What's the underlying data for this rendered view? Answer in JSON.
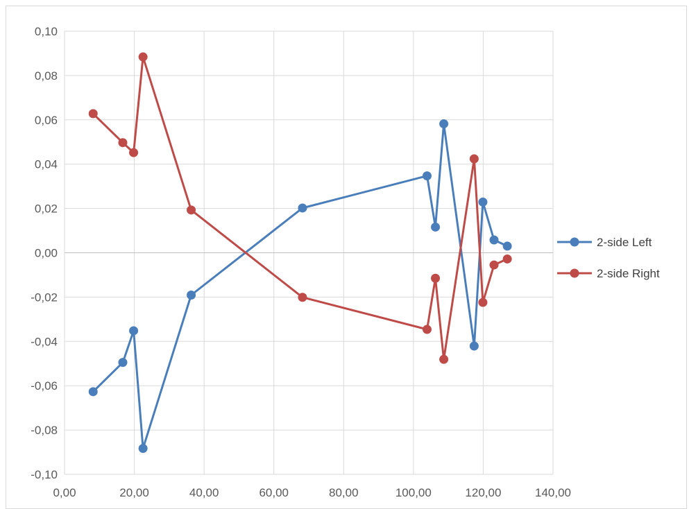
{
  "chart_data": {
    "type": "scatter",
    "title": "",
    "xlabel": "",
    "ylabel": "",
    "xlim": [
      0,
      140
    ],
    "ylim": [
      -0.1,
      0.1
    ],
    "x_ticks": [
      0,
      20,
      40,
      60,
      80,
      100,
      120,
      140
    ],
    "y_ticks": [
      0.1,
      0.08,
      0.06,
      0.04,
      0.02,
      0.0,
      -0.02,
      -0.04,
      -0.06,
      -0.08,
      -0.1
    ],
    "x_tick_labels": [
      "0,00",
      "20,00",
      "40,00",
      "60,00",
      "80,00",
      "100,00",
      "120,00",
      "140,00"
    ],
    "y_tick_labels": [
      "0,10",
      "0,08",
      "0,06",
      "0,04",
      "0,02",
      "0,00",
      "-0,02",
      "-0,04",
      "-0,06",
      "-0,08",
      "-0,10"
    ],
    "grid": true,
    "legend_position": "right",
    "series": [
      {
        "name": "2-side Left",
        "color": "#4a7ebb",
        "x": [
          8.2,
          16.7,
          19.8,
          22.5,
          36.3,
          68.2,
          103.9,
          106.3,
          108.7,
          117.4,
          119.9,
          123.1,
          126.9
        ],
        "y": [
          -0.0627,
          -0.0495,
          -0.0352,
          -0.0883,
          -0.0191,
          0.0202,
          0.0347,
          0.0116,
          0.0582,
          -0.0421,
          0.0229,
          0.0058,
          0.003
        ]
      },
      {
        "name": "2-side Right",
        "color": "#be4b48",
        "x": [
          8.2,
          16.7,
          19.8,
          22.5,
          36.3,
          68.2,
          103.9,
          106.3,
          108.7,
          117.4,
          119.9,
          123.1,
          126.9
        ],
        "y": [
          0.0628,
          0.0497,
          0.0452,
          0.0884,
          0.0193,
          -0.0201,
          -0.0346,
          -0.0115,
          -0.0481,
          0.0424,
          -0.0224,
          -0.0055,
          -0.0028
        ]
      }
    ]
  }
}
